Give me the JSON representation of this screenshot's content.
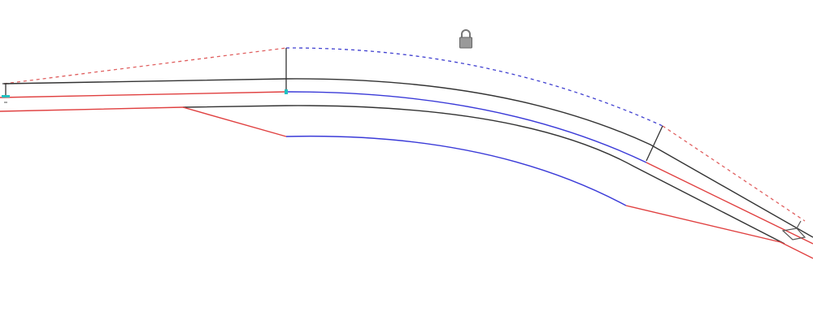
{
  "canvas": {
    "background": "#ffffff"
  },
  "colors": {
    "red": "#e04040",
    "blue": "#3a3ad8",
    "black": "#333333",
    "cyan": "#20c0c0",
    "lock": "#888888"
  },
  "icons": {
    "lock": "lock-icon",
    "grip": "grip-marker-icon"
  }
}
